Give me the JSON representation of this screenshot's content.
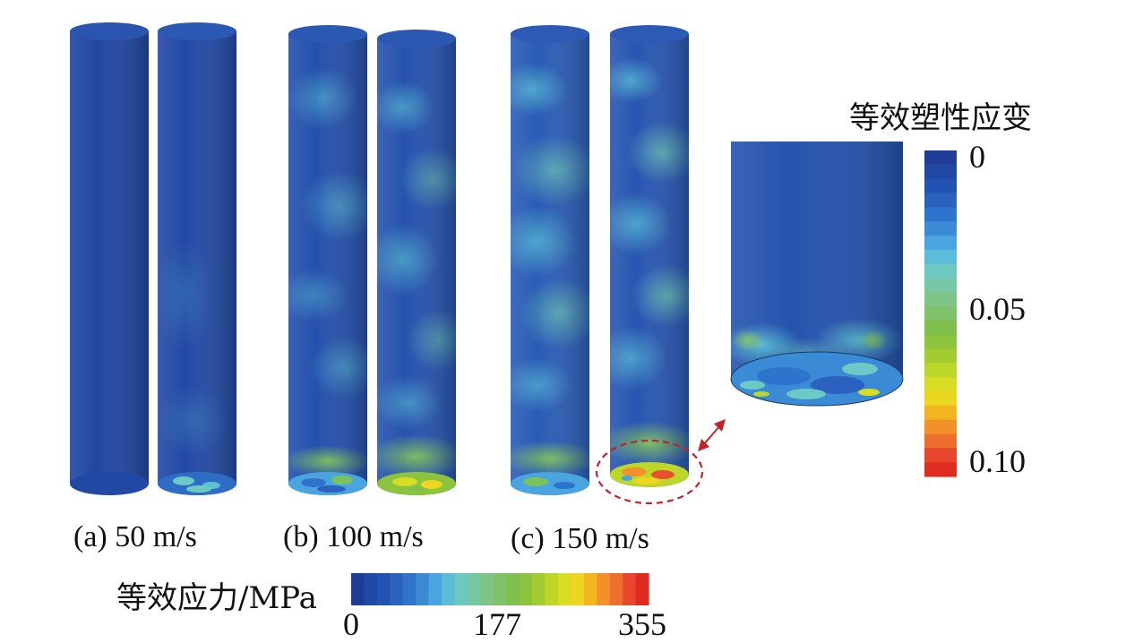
{
  "cases": [
    {
      "caption": "(a) 50 m/s"
    },
    {
      "caption": "(b) 100 m/s"
    },
    {
      "caption": "(c) 150 m/s"
    }
  ],
  "stress_legend": {
    "title": "等效应力/MPa",
    "ticks": [
      "0",
      "177",
      "355"
    ]
  },
  "strain_legend": {
    "title": "等效塑性应变",
    "ticks": [
      "0",
      "0.05",
      "0.10"
    ]
  },
  "colors": {
    "scale": [
      "#1f3d96",
      "#2049a4",
      "#2353b2",
      "#2b62c0",
      "#2f74cc",
      "#3a8ad6",
      "#4aa4df",
      "#5bbcd8",
      "#6cc8c0",
      "#76c8a4",
      "#7dc486",
      "#80c26a",
      "#7fbf4e",
      "#8cc43e",
      "#a3cc33",
      "#bdd62a",
      "#d8dd23",
      "#ecd61f",
      "#f3b51f",
      "#f2902a",
      "#ee6f2d",
      "#e8472d",
      "#e02b23"
    ],
    "highlight": "#c0232a"
  }
}
